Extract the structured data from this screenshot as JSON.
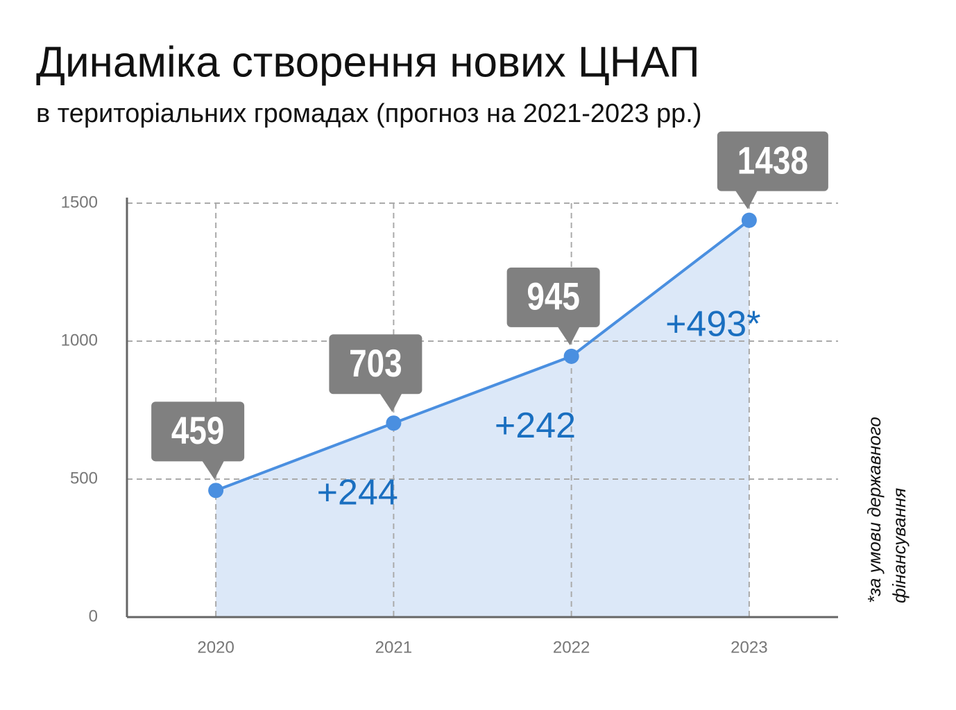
{
  "chart_data": {
    "type": "line",
    "title": "Динаміка створення нових ЦНАП",
    "subtitle": "в територіальних громадах (прогноз на 2021-2023 рр.)",
    "categories": [
      "2020",
      "2021",
      "2022",
      "2023"
    ],
    "values": [
      459,
      703,
      945,
      1438
    ],
    "color": "#4a8fe0",
    "area_color": "#dce8f8",
    "callout_color": "#808080",
    "ylim": [
      0,
      1500
    ],
    "yticks": [
      0,
      500,
      1000,
      1500
    ],
    "grid": true,
    "annotations": [
      "+244",
      "+242",
      "+493*"
    ],
    "annotation_color": "#1a6fc0",
    "note_lines": [
      "*за умови державного",
      "фінансування"
    ]
  }
}
